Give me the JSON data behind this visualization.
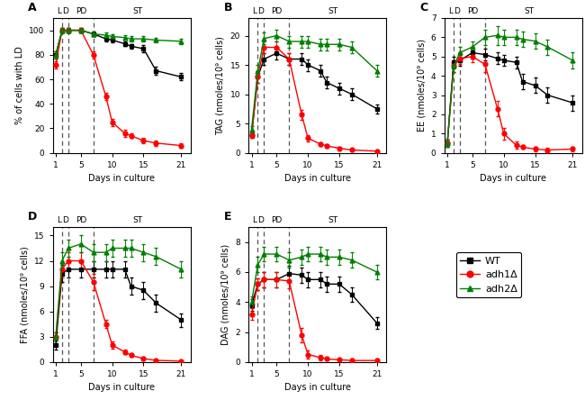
{
  "phase_lines": [
    2,
    3,
    7
  ],
  "colors": {
    "WT": "#000000",
    "adh1": "#ff0000",
    "adh2": "#008000"
  },
  "markers": {
    "WT": "s",
    "adh1": "o",
    "adh2": "^"
  },
  "A": {
    "title": "A",
    "ylabel": "% of cells with LD",
    "xlabel": "Days in culture",
    "ylim": [
      0,
      110
    ],
    "yticks": [
      0,
      20,
      40,
      60,
      80,
      100
    ],
    "days": [
      1,
      2,
      3,
      5,
      7,
      9,
      10,
      12,
      13,
      15,
      17,
      21
    ],
    "WT": [
      80,
      100,
      100,
      100,
      97,
      93,
      92,
      89,
      87,
      85,
      67,
      62
    ],
    "adh1": [
      72,
      100,
      100,
      100,
      80,
      46,
      25,
      16,
      14,
      10,
      8,
      6
    ],
    "adh2": [
      80,
      100,
      100,
      100,
      97,
      96,
      95,
      94,
      93,
      93,
      92,
      91
    ],
    "WT_err": [
      3,
      2,
      2,
      2,
      2,
      2,
      2,
      2,
      2,
      3,
      3,
      3
    ],
    "adh1_err": [
      3,
      2,
      2,
      2,
      3,
      3,
      3,
      3,
      2,
      2,
      2,
      2
    ],
    "adh2_err": [
      3,
      2,
      2,
      2,
      2,
      2,
      2,
      2,
      2,
      2,
      2,
      2
    ]
  },
  "B": {
    "title": "B",
    "ylabel": "TAG (nmoles/10⁹ cells)",
    "xlabel": "Days in culture",
    "ylim": [
      0,
      23
    ],
    "yticks": [
      0,
      5,
      10,
      15,
      20
    ],
    "days": [
      1,
      2,
      3,
      5,
      7,
      9,
      10,
      12,
      13,
      15,
      17,
      21
    ],
    "WT": [
      3,
      13,
      16,
      17,
      16,
      16,
      15,
      14,
      12,
      11,
      10,
      7.5
    ],
    "adh1": [
      3,
      13,
      18,
      18,
      16,
      6.5,
      2.5,
      1.5,
      1.2,
      0.8,
      0.5,
      0.3
    ],
    "adh2": [
      4,
      14,
      19.5,
      20,
      19,
      19,
      19,
      18.5,
      18.5,
      18.5,
      18,
      14
    ],
    "WT_err": [
      0.5,
      1,
      1,
      1,
      1,
      1,
      1,
      1,
      1,
      1,
      1,
      0.8
    ],
    "adh1_err": [
      0.5,
      1,
      1,
      1,
      1,
      0.8,
      0.5,
      0.3,
      0.3,
      0.3,
      0.2,
      0.2
    ],
    "adh2_err": [
      0.5,
      1,
      1,
      1,
      1,
      1,
      1,
      1,
      1,
      1,
      1,
      1
    ]
  },
  "C": {
    "title": "C",
    "ylabel": "EE (nmoles/10⁹ cells)",
    "xlabel": "Days in culture",
    "ylim": [
      0,
      7
    ],
    "yticks": [
      0,
      1,
      2,
      3,
      4,
      5,
      6,
      7
    ],
    "days": [
      1,
      2,
      3,
      5,
      7,
      9,
      10,
      12,
      13,
      15,
      17,
      21
    ],
    "WT": [
      0.5,
      4.7,
      4.8,
      5.2,
      5.1,
      4.9,
      4.8,
      4.7,
      3.7,
      3.5,
      3.0,
      2.6
    ],
    "adh1": [
      0.5,
      4.5,
      4.9,
      5.0,
      4.6,
      2.3,
      1.0,
      0.4,
      0.3,
      0.2,
      0.15,
      0.2
    ],
    "adh2": [
      0.5,
      4.5,
      5.2,
      5.5,
      6.0,
      6.1,
      6.0,
      6.0,
      5.9,
      5.8,
      5.5,
      4.8
    ],
    "WT_err": [
      0.2,
      0.3,
      0.3,
      0.3,
      0.3,
      0.3,
      0.3,
      0.3,
      0.4,
      0.4,
      0.4,
      0.4
    ],
    "adh1_err": [
      0.2,
      0.3,
      0.3,
      0.3,
      0.4,
      0.4,
      0.3,
      0.2,
      0.1,
      0.1,
      0.1,
      0.1
    ],
    "adh2_err": [
      0.2,
      0.3,
      0.3,
      0.3,
      0.4,
      0.5,
      0.4,
      0.4,
      0.4,
      0.4,
      0.4,
      0.4
    ]
  },
  "D": {
    "title": "D",
    "ylabel": "FFA (nmoles/10⁹ cells)",
    "xlabel": "Days in culture",
    "ylim": [
      0,
      16
    ],
    "yticks": [
      0,
      3,
      6,
      9,
      12,
      15
    ],
    "days": [
      1,
      2,
      3,
      5,
      7,
      9,
      10,
      12,
      13,
      15,
      17,
      21
    ],
    "WT": [
      2,
      10.5,
      11,
      11,
      11,
      11,
      11,
      11,
      9,
      8.5,
      7,
      5
    ],
    "adh1": [
      3,
      11,
      12,
      12,
      9.5,
      4.5,
      2,
      1.2,
      0.8,
      0.4,
      0.2,
      0.1
    ],
    "adh2": [
      3,
      12,
      13.5,
      14,
      13,
      13,
      13.5,
      13.5,
      13.5,
      13,
      12.5,
      11
    ],
    "WT_err": [
      0.5,
      1,
      1,
      1,
      1,
      1,
      1,
      1,
      1,
      1,
      1,
      0.8
    ],
    "adh1_err": [
      0.5,
      1,
      1,
      1,
      1,
      0.5,
      0.4,
      0.3,
      0.2,
      0.2,
      0.1,
      0.1
    ],
    "adh2_err": [
      0.5,
      1,
      1,
      1,
      1,
      1,
      1,
      1,
      1,
      1,
      1,
      1
    ]
  },
  "E": {
    "title": "E",
    "ylabel": "DAG (nmoles/10⁹ cells)",
    "xlabel": "Days in culture",
    "ylim": [
      0,
      9
    ],
    "yticks": [
      0,
      2,
      4,
      6,
      8
    ],
    "days": [
      1,
      2,
      3,
      5,
      7,
      9,
      10,
      12,
      13,
      15,
      17,
      21
    ],
    "WT": [
      3.8,
      5.2,
      5.5,
      5.5,
      5.9,
      5.8,
      5.5,
      5.5,
      5.2,
      5.2,
      4.5,
      2.6
    ],
    "adh1": [
      3.2,
      5.2,
      5.5,
      5.5,
      5.4,
      1.8,
      0.5,
      0.3,
      0.2,
      0.15,
      0.1,
      0.1
    ],
    "adh2": [
      4.0,
      6.5,
      7.2,
      7.2,
      6.8,
      7.0,
      7.2,
      7.2,
      7.0,
      7.0,
      6.8,
      6.0
    ],
    "WT_err": [
      0.4,
      0.4,
      0.5,
      0.5,
      0.5,
      0.5,
      0.5,
      0.5,
      0.5,
      0.5,
      0.5,
      0.4
    ],
    "adh1_err": [
      0.4,
      0.4,
      0.5,
      0.5,
      0.5,
      0.5,
      0.3,
      0.2,
      0.1,
      0.1,
      0.1,
      0.1
    ],
    "adh2_err": [
      0.4,
      0.5,
      0.5,
      0.5,
      0.5,
      0.5,
      0.5,
      0.5,
      0.5,
      0.5,
      0.5,
      0.5
    ]
  }
}
